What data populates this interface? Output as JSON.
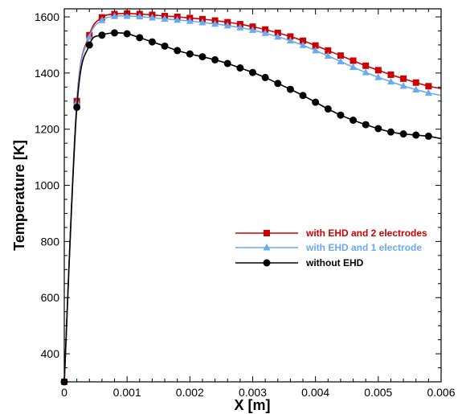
{
  "chart_data": {
    "type": "line",
    "title": "",
    "xlabel": "X [m]",
    "ylabel": "Temperature [K]",
    "xlim": [
      0,
      0.006
    ],
    "ylim": [
      300,
      1600
    ],
    "xticks": [
      0,
      0.001,
      0.002,
      0.003,
      0.004,
      0.005,
      0.006
    ],
    "xtick_labels": [
      "0",
      "0.001",
      "0.002",
      "0.003",
      "0.004",
      "0.005",
      "0.006"
    ],
    "yticks": [
      400,
      600,
      800,
      1000,
      1200,
      1400,
      1600
    ],
    "ytick_labels": [
      "400",
      "600",
      "800",
      "1000",
      "1200",
      "1400",
      "1600"
    ],
    "grid": false,
    "legend_position": "center-right",
    "series": [
      {
        "name": "with EHD and 2 electrodes",
        "color": "#cc0000",
        "marker": "square",
        "x": [
          0,
          0.0002,
          0.0004,
          0.0006,
          0.0008,
          0.001,
          0.0012,
          0.0014,
          0.0016,
          0.0018,
          0.002,
          0.0022,
          0.0024,
          0.0026,
          0.0028,
          0.003,
          0.0032,
          0.0034,
          0.0036,
          0.0038,
          0.004,
          0.0042,
          0.0044,
          0.0046,
          0.0048,
          0.005,
          0.0052,
          0.0054,
          0.0056,
          0.0058
        ],
        "y": [
          300,
          1300,
          1535,
          1598,
          1610,
          1612,
          1610,
          1607,
          1603,
          1600,
          1596,
          1592,
          1587,
          1581,
          1574,
          1565,
          1555,
          1543,
          1530,
          1515,
          1498,
          1480,
          1462,
          1444,
          1426,
          1410,
          1394,
          1380,
          1366,
          1353
        ]
      },
      {
        "name": "with EHD and 1 electrode",
        "color": "#6aaaf0",
        "marker": "triangle",
        "x": [
          0,
          0.0002,
          0.0004,
          0.0006,
          0.0008,
          0.001,
          0.0012,
          0.0014,
          0.0016,
          0.0018,
          0.002,
          0.0022,
          0.0024,
          0.0026,
          0.0028,
          0.003,
          0.0032,
          0.0034,
          0.0036,
          0.0038,
          0.004,
          0.0042,
          0.0044,
          0.0046,
          0.0048,
          0.005,
          0.0052,
          0.0054,
          0.0056,
          0.0058
        ],
        "y": [
          300,
          1295,
          1528,
          1588,
          1602,
          1603,
          1601,
          1597,
          1593,
          1589,
          1585,
          1580,
          1575,
          1569,
          1562,
          1553,
          1542,
          1529,
          1515,
          1499,
          1480,
          1461,
          1441,
          1421,
          1402,
          1385,
          1369,
          1354,
          1341,
          1329
        ]
      },
      {
        "name": "without EHD",
        "color": "#000000",
        "marker": "circle",
        "x": [
          0,
          0.0002,
          0.0004,
          0.0006,
          0.0008,
          0.001,
          0.0012,
          0.0014,
          0.0016,
          0.0018,
          0.002,
          0.0022,
          0.0024,
          0.0026,
          0.0028,
          0.003,
          0.0032,
          0.0034,
          0.0036,
          0.0038,
          0.004,
          0.0042,
          0.0044,
          0.0046,
          0.0048,
          0.005,
          0.0052,
          0.0054,
          0.0056,
          0.0058
        ],
        "y": [
          300,
          1278,
          1500,
          1535,
          1543,
          1540,
          1526,
          1511,
          1496,
          1480,
          1468,
          1458,
          1447,
          1434,
          1418,
          1402,
          1384,
          1363,
          1342,
          1320,
          1296,
          1272,
          1250,
          1232,
          1216,
          1202,
          1190,
          1183,
          1179,
          1175
        ]
      }
    ]
  }
}
